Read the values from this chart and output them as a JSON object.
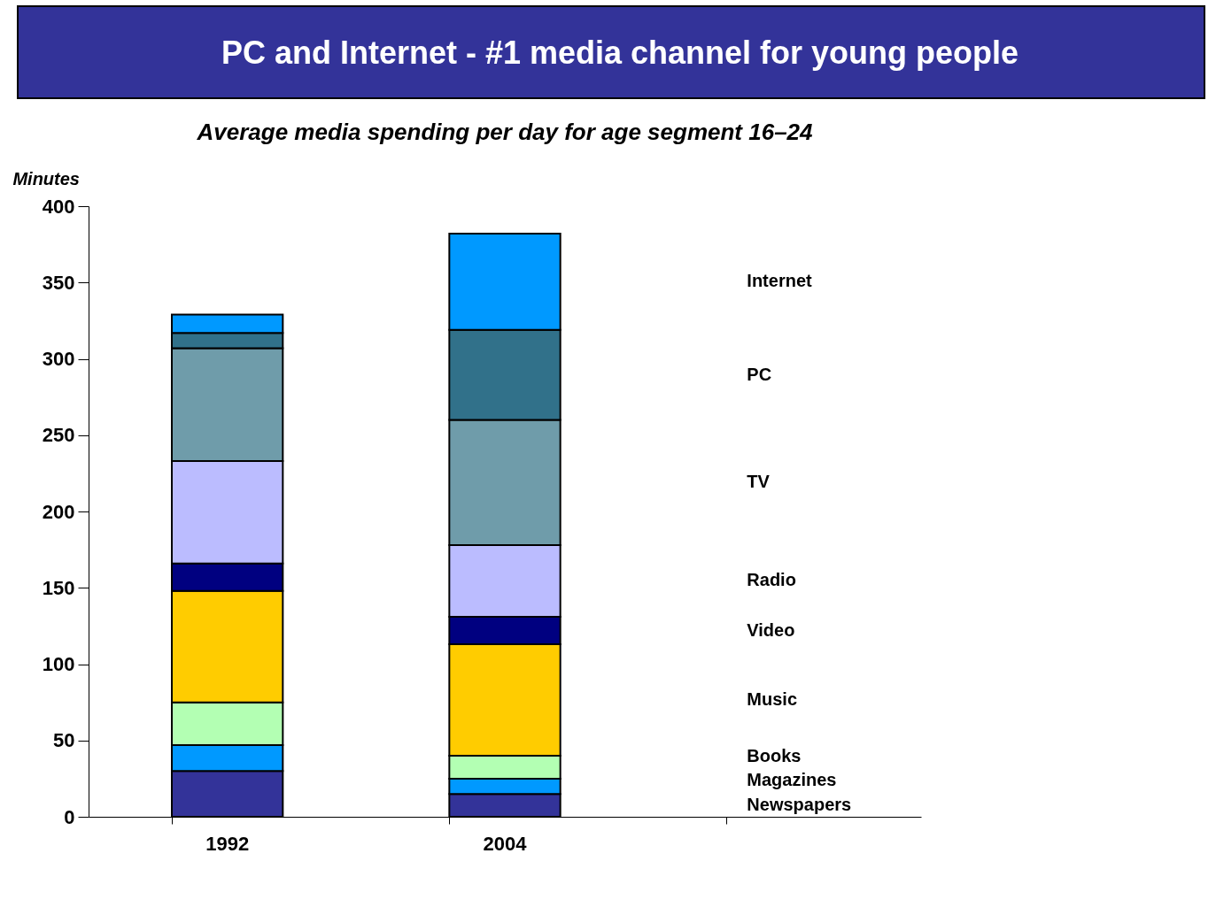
{
  "chart_data": {
    "type": "bar",
    "stacked": true,
    "title": "PC and Internet - #1 media channel for young people",
    "subtitle": "Average media spending per day for age segment 16–24",
    "ylabel": "Minutes",
    "categories": [
      "1992",
      "2004"
    ],
    "series": [
      {
        "name": "Newspapers",
        "color": "#333399",
        "values": [
          30,
          15
        ]
      },
      {
        "name": "Magazines",
        "color": "#0099ff",
        "values": [
          17,
          10
        ]
      },
      {
        "name": "Books",
        "color": "#b3ffb3",
        "values": [
          28,
          15
        ]
      },
      {
        "name": "Music",
        "color": "#ffcc00",
        "values": [
          73,
          73
        ]
      },
      {
        "name": "Video",
        "color": "#000080",
        "values": [
          18,
          18
        ]
      },
      {
        "name": "Radio",
        "color": "#bbbcff",
        "values": [
          67,
          47
        ]
      },
      {
        "name": "TV",
        "color": "#6f9caa",
        "values": [
          74,
          82
        ]
      },
      {
        "name": "PC",
        "color": "#31718a",
        "values": [
          10,
          59
        ]
      },
      {
        "name": "Internet",
        "color": "#0099ff",
        "values": [
          12,
          63
        ]
      }
    ],
    "ylim": [
      0,
      400
    ],
    "yticks": [
      0,
      50,
      100,
      150,
      200,
      250,
      300,
      350,
      400
    ],
    "grid": false,
    "legend": false
  }
}
